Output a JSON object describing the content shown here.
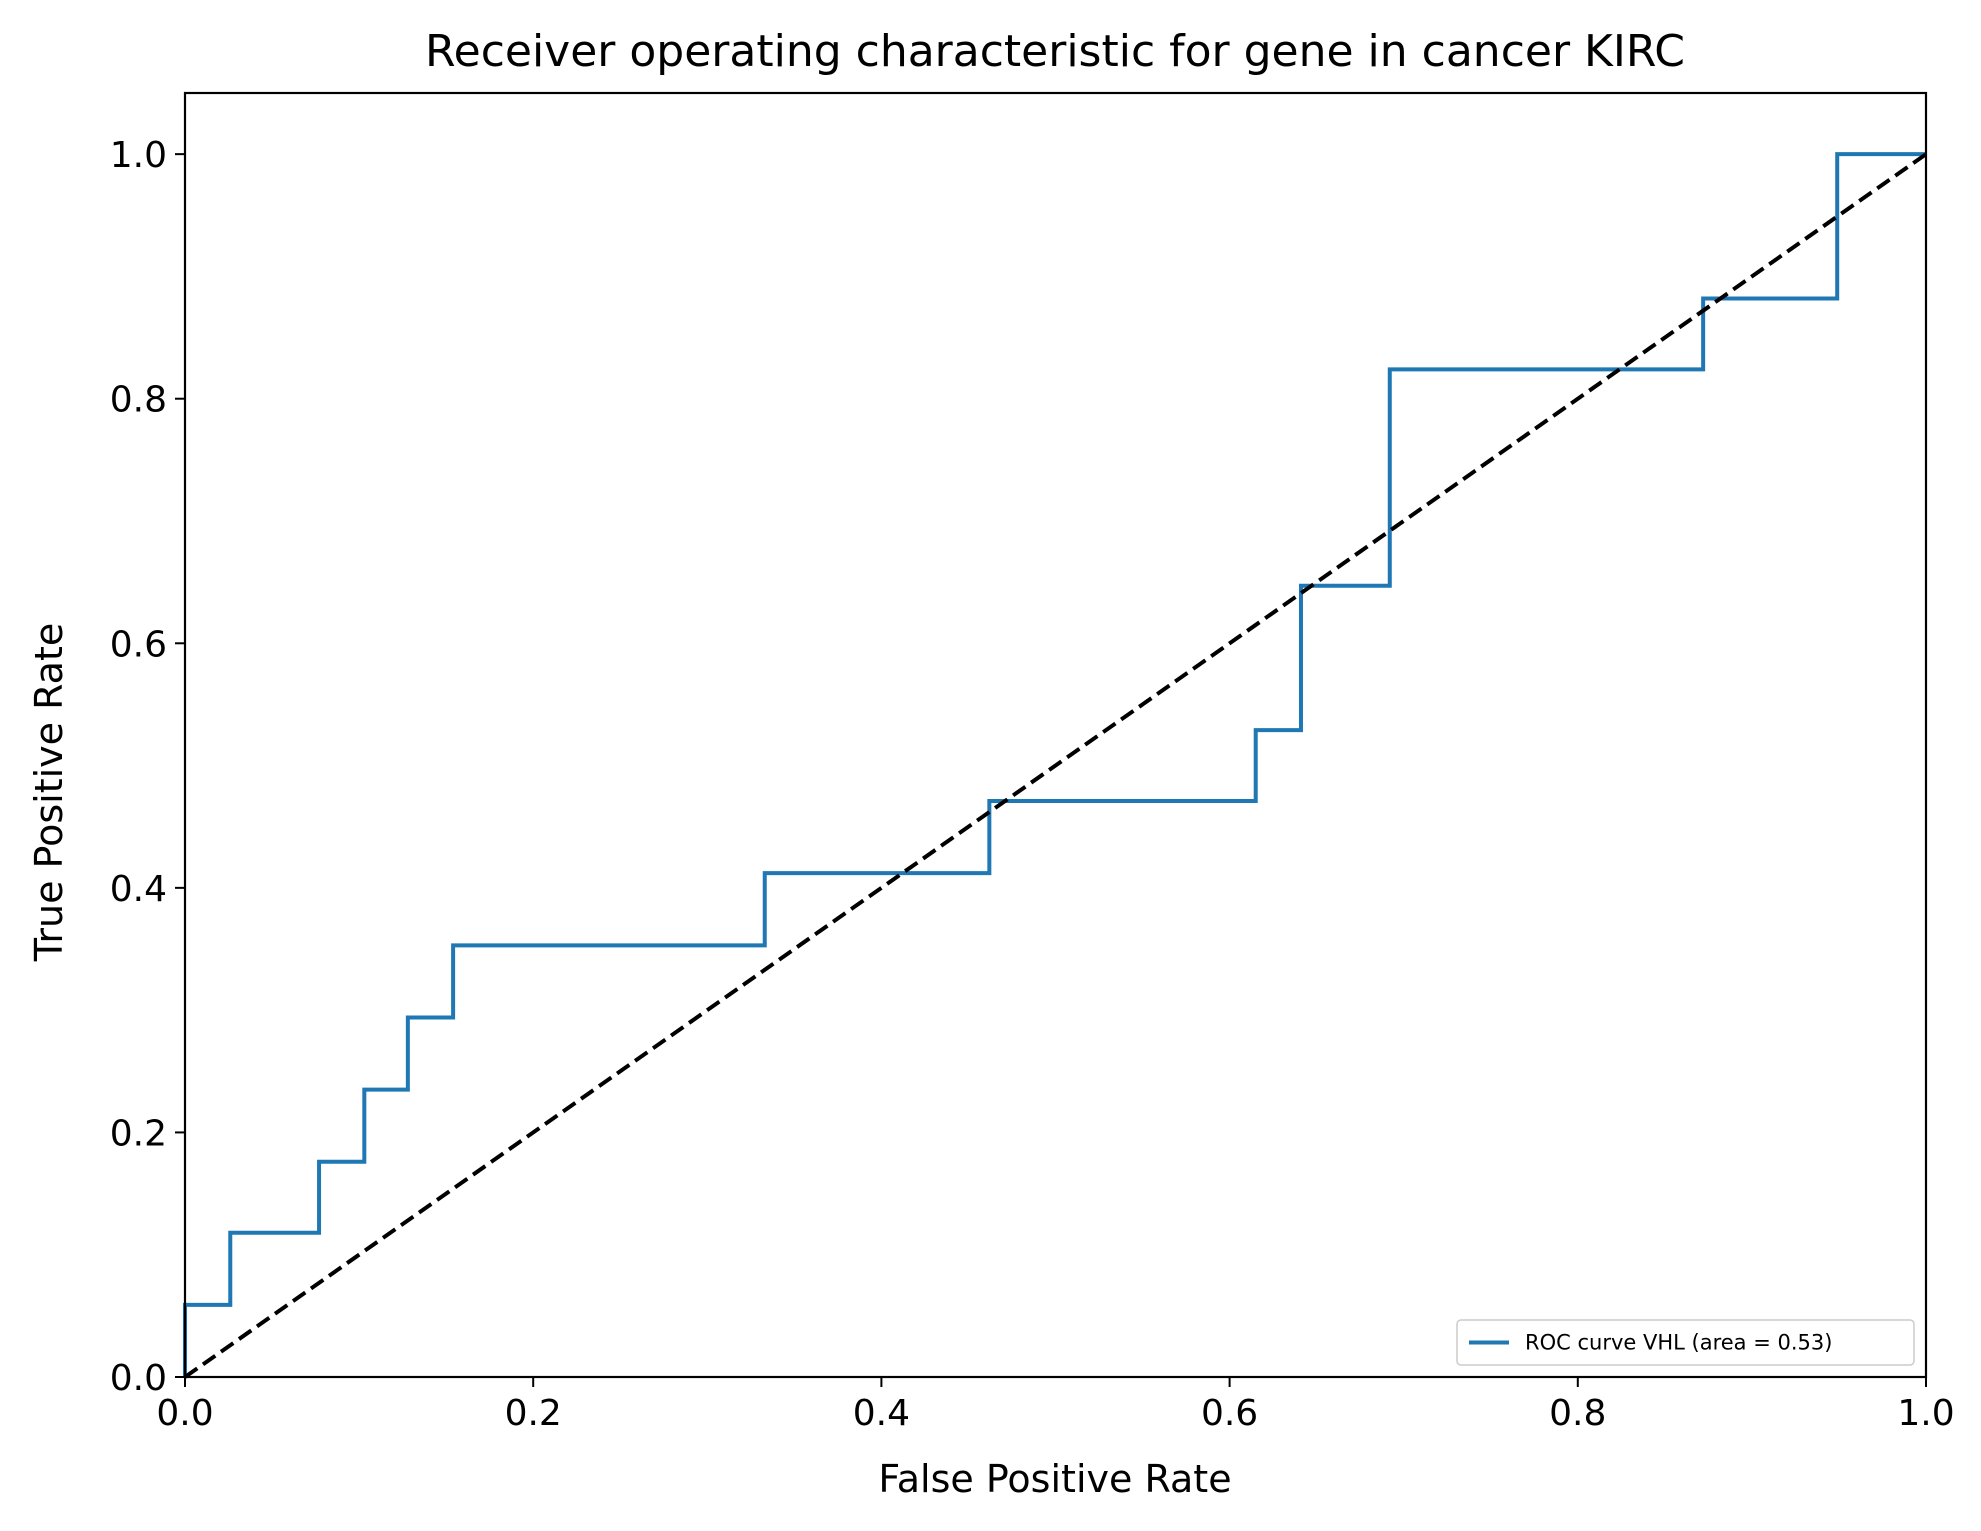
{
  "chart_data": {
    "type": "line",
    "title": "Receiver operating characteristic for gene in cancer KIRC",
    "xlabel": "False Positive Rate",
    "ylabel": "True Positive Rate",
    "xlim": [
      0.0,
      1.0
    ],
    "ylim": [
      0.0,
      1.05
    ],
    "xticks": [
      "0.0",
      "0.2",
      "0.4",
      "0.6",
      "0.8",
      "1.0"
    ],
    "yticks": [
      "0.0",
      "0.2",
      "0.4",
      "0.6",
      "0.8",
      "1.0"
    ],
    "grid": false,
    "legend_position": "lower-right",
    "series": [
      {
        "name": "ROC curve VHL (area = 0.53)",
        "color": "#1f77b4",
        "style": "solid",
        "x": [
          0.0,
          0.0,
          0.026,
          0.026,
          0.077,
          0.077,
          0.103,
          0.103,
          0.128,
          0.128,
          0.154,
          0.154,
          0.333,
          0.333,
          0.462,
          0.462,
          0.615,
          0.615,
          0.641,
          0.641,
          0.692,
          0.692,
          0.872,
          0.872,
          0.949,
          0.949,
          1.0
        ],
        "y": [
          0.0,
          0.059,
          0.059,
          0.118,
          0.118,
          0.176,
          0.176,
          0.235,
          0.235,
          0.294,
          0.294,
          0.353,
          0.353,
          0.412,
          0.412,
          0.471,
          0.471,
          0.529,
          0.529,
          0.647,
          0.647,
          0.824,
          0.824,
          0.882,
          0.882,
          1.0,
          1.0
        ]
      },
      {
        "color": "#000000",
        "style": "dashed",
        "x": [
          0.0,
          1.0
        ],
        "y": [
          0.0,
          1.0
        ]
      }
    ]
  }
}
